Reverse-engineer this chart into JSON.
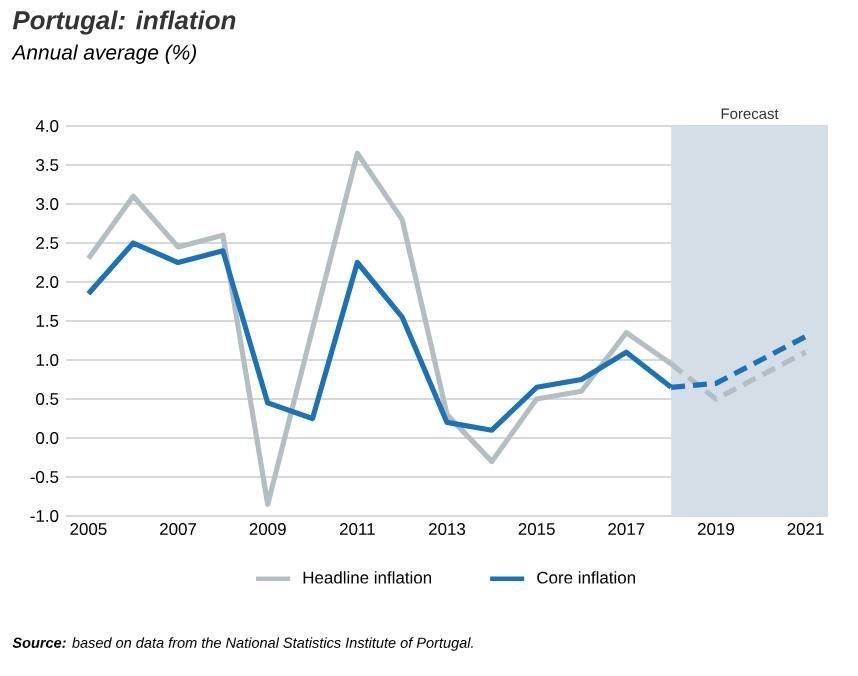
{
  "chart_data": {
    "type": "line",
    "title": "Portugal: inflation",
    "subtitle": "Annual average (%)",
    "xlim": [
      2004.5,
      2021.5
    ],
    "xticks": [
      2005,
      2007,
      2009,
      2011,
      2013,
      2015,
      2017,
      2019,
      2021
    ],
    "ylim": [
      -1.0,
      4.0
    ],
    "yticks": [
      {
        "value": -1.0,
        "label": "-1.0"
      },
      {
        "value": -0.5,
        "label": "-0.5"
      },
      {
        "value": 0,
        "label": "0.0"
      },
      {
        "value": 0.5,
        "label": "0.5"
      },
      {
        "value": 1.0,
        "label": "1.0"
      },
      {
        "value": 1.5,
        "label": "1.5"
      },
      {
        "value": 2.0,
        "label": "2.0"
      },
      {
        "value": 2.5,
        "label": "2.5"
      },
      {
        "value": 3.0,
        "label": "3.0"
      },
      {
        "value": 3.5,
        "label": "3.5"
      },
      {
        "value": 4.0,
        "label": "4.0"
      }
    ],
    "grid": "y",
    "legend": "bottom",
    "marker": "none",
    "series": [
      {
        "name": "Headline inflation",
        "color": "#b3bec3",
        "line_style": "solid",
        "x": [
          2005,
          2006,
          2007,
          2008,
          2009,
          2010,
          2011,
          2012,
          2013,
          2014,
          2015,
          2016,
          2017,
          2018
        ],
        "values": [
          2.3,
          3.1,
          2.45,
          2.6,
          -0.85,
          1.4,
          3.65,
          2.8,
          0.3,
          -0.3,
          0.5,
          0.6,
          1.35,
          0.95
        ]
      },
      {
        "name": "Core inflation",
        "color": "#1a72b9",
        "line_style": "solid",
        "x": [
          2005,
          2006,
          2007,
          2008,
          2009,
          2010,
          2011,
          2012,
          2013,
          2014,
          2015,
          2016,
          2017,
          2018
        ],
        "values": [
          1.85,
          2.5,
          2.25,
          2.4,
          0.45,
          0.25,
          2.25,
          1.55,
          0.2,
          0.1,
          0.65,
          0.75,
          1.1,
          0.65
        ]
      },
      {
        "color": "#b3bec3",
        "line_style": "dashed",
        "x": [
          2018,
          2019,
          2020,
          2021
        ],
        "values": [
          0.95,
          0.5,
          0.8,
          1.1
        ]
      },
      {
        "color": "#1a72b9",
        "line_style": "dashed",
        "x": [
          2018,
          2019,
          2020,
          2021
        ],
        "values": [
          0.65,
          0.7,
          1.0,
          1.3
        ]
      }
    ],
    "bands": [
      {
        "axis": "x",
        "from": 2018,
        "to": 2021.5,
        "label": "Forecast",
        "color": "#d3dee6"
      }
    ],
    "annotations": [
      "**Source:** based on data from the National Statistics Institute of Portugal."
    ]
  }
}
